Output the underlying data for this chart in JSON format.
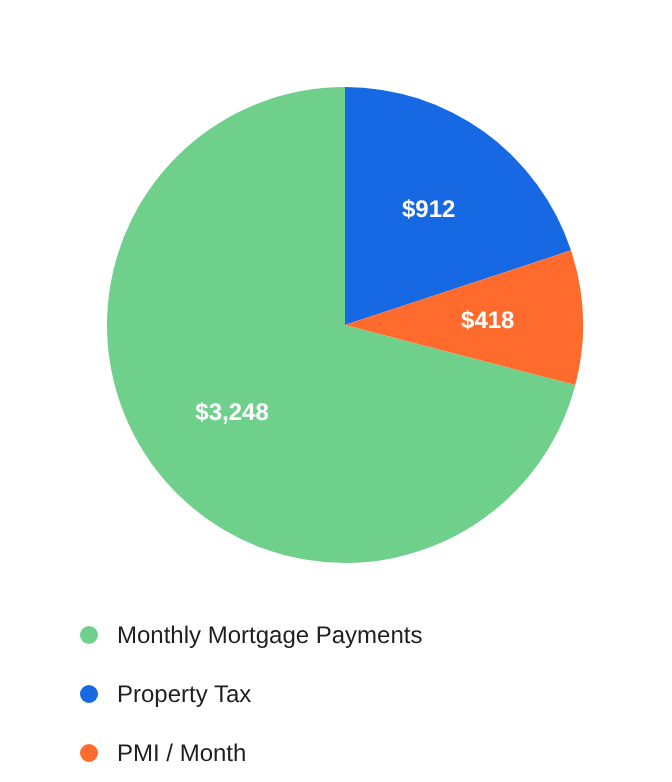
{
  "chart_data": {
    "type": "pie",
    "categories": [
      "Monthly Mortgage Payments",
      "Property Tax",
      "PMI / Month"
    ],
    "values": [
      3248,
      912,
      418
    ],
    "colors": [
      "#6fd08c",
      "#1668e3",
      "#ff6b2c"
    ],
    "value_labels": [
      "$3,248",
      "$912",
      "$418"
    ],
    "legend": "bottom"
  }
}
